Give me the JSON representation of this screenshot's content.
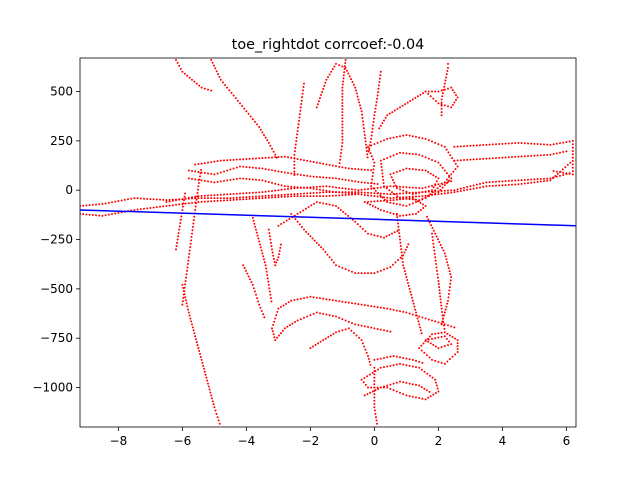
{
  "chart_data": {
    "type": "scatter",
    "title": "toe_rightdot corrcoef:-0.04",
    "xlabel": "",
    "ylabel": "",
    "xlim": [
      -9.2,
      6.3
    ],
    "ylim": [
      -1200,
      670
    ],
    "x_ticks": [
      -8,
      -6,
      -4,
      -2,
      0,
      2,
      4,
      6
    ],
    "x_tick_labels": [
      "−8",
      "−6",
      "−4",
      "−2",
      "0",
      "2",
      "4",
      "6"
    ],
    "y_ticks": [
      500,
      250,
      0,
      -250,
      -500,
      -750,
      -1000
    ],
    "y_tick_labels": [
      "500",
      "250",
      "0",
      "−250",
      "−500",
      "−750",
      "−1000"
    ],
    "grid": false,
    "colors": {
      "points": "#ff0000",
      "fit_line": "#0000ff"
    },
    "fit_line": {
      "x": [
        -9.2,
        6.3
      ],
      "y": [
        -100,
        -180
      ]
    },
    "scatter_paths": [
      [
        [
          -9.2,
          -80
        ],
        [
          -8.5,
          -70
        ],
        [
          -7.5,
          -40
        ],
        [
          -6.5,
          -50
        ],
        [
          -5.5,
          -40
        ],
        [
          -4.5,
          -40
        ],
        [
          -3.5,
          -30
        ],
        [
          -2.5,
          -20
        ],
        [
          -1.5,
          -10
        ],
        [
          -0.5,
          -10
        ],
        [
          0.5,
          -20
        ],
        [
          1.5,
          -10
        ],
        [
          2.5,
          0
        ],
        [
          3.5,
          40
        ],
        [
          4.5,
          50
        ],
        [
          5.5,
          60
        ],
        [
          6.2,
          90
        ]
      ],
      [
        [
          -9.2,
          -120
        ],
        [
          -8.5,
          -130
        ],
        [
          -7.5,
          -100
        ],
        [
          -6.5,
          -80
        ],
        [
          -5.5,
          -60
        ],
        [
          -4.5,
          -50
        ],
        [
          -3.5,
          -40
        ],
        [
          -2.5,
          -30
        ],
        [
          -1.5,
          -30
        ],
        [
          -0.5,
          -20
        ],
        [
          0.5,
          -40
        ],
        [
          1.5,
          -30
        ],
        [
          2.5,
          -10
        ],
        [
          3.5,
          20
        ],
        [
          4.5,
          30
        ],
        [
          5.5,
          50
        ],
        [
          6.2,
          150
        ]
      ],
      [
        [
          -6.5,
          -60
        ],
        [
          -5.5,
          -30
        ],
        [
          -4.5,
          -20
        ],
        [
          -3.5,
          -10
        ],
        [
          -2.5,
          10
        ],
        [
          -1.5,
          20
        ],
        [
          -0.5,
          0
        ],
        [
          0.5,
          20
        ],
        [
          1.5,
          10
        ],
        [
          2.5,
          50
        ]
      ],
      [
        [
          -5.8,
          100
        ],
        [
          -5,
          80
        ],
        [
          -4.2,
          120
        ],
        [
          -3.5,
          110
        ],
        [
          -2.8,
          90
        ],
        [
          -2,
          70
        ],
        [
          -1.2,
          60
        ],
        [
          -0.4,
          40
        ],
        [
          0.2,
          30
        ]
      ],
      [
        [
          -5.8,
          60
        ],
        [
          -5,
          40
        ],
        [
          -4.2,
          60
        ],
        [
          -3.5,
          50
        ],
        [
          -2.8,
          20
        ],
        [
          -2,
          10
        ],
        [
          -1.2,
          -10
        ],
        [
          -0.4,
          -20
        ]
      ],
      [
        [
          -5.6,
          130
        ],
        [
          -4.8,
          150
        ],
        [
          -3.8,
          160
        ],
        [
          -2.8,
          170
        ],
        [
          -1.8,
          140
        ],
        [
          -0.8,
          110
        ],
        [
          0,
          100
        ]
      ],
      [
        [
          2.5,
          220
        ],
        [
          3.5,
          230
        ],
        [
          4.5,
          240
        ],
        [
          5.5,
          230
        ],
        [
          6.2,
          250
        ],
        [
          6.2,
          80
        ],
        [
          5.5,
          100
        ]
      ],
      [
        [
          2.5,
          150
        ],
        [
          3.5,
          160
        ],
        [
          4.5,
          170
        ],
        [
          5.5,
          180
        ],
        [
          6.1,
          200
        ]
      ],
      [
        [
          -0.2,
          220
        ],
        [
          0.4,
          260
        ],
        [
          1,
          280
        ],
        [
          1.6,
          260
        ],
        [
          2.2,
          220
        ],
        [
          2.6,
          120
        ],
        [
          2.2,
          40
        ],
        [
          1.6,
          -40
        ],
        [
          1,
          -80
        ],
        [
          0.4,
          -60
        ],
        [
          -0.1,
          20
        ],
        [
          0,
          140
        ],
        [
          -0.2,
          220
        ]
      ],
      [
        [
          0.2,
          150
        ],
        [
          0.8,
          190
        ],
        [
          1.4,
          180
        ],
        [
          2,
          140
        ],
        [
          2.4,
          60
        ],
        [
          2,
          -10
        ],
        [
          1.4,
          -50
        ],
        [
          0.8,
          -40
        ],
        [
          0.3,
          20
        ],
        [
          0.2,
          150
        ]
      ],
      [
        [
          0.5,
          80
        ],
        [
          1,
          110
        ],
        [
          1.6,
          100
        ],
        [
          2,
          60
        ],
        [
          1.8,
          0
        ],
        [
          1.2,
          -20
        ],
        [
          0.7,
          10
        ],
        [
          0.5,
          80
        ]
      ],
      [
        [
          -0.3,
          -60
        ],
        [
          0.2,
          -100
        ],
        [
          0.8,
          -130
        ],
        [
          1.3,
          -120
        ],
        [
          1.6,
          -80
        ],
        [
          1.2,
          -40
        ],
        [
          0.6,
          -50
        ],
        [
          -0.3,
          -60
        ]
      ],
      [
        [
          -3,
          -180
        ],
        [
          -2.4,
          -120
        ],
        [
          -1.8,
          -60
        ],
        [
          -1.2,
          -80
        ],
        [
          -0.6,
          -160
        ],
        [
          -0.2,
          -220
        ],
        [
          0.3,
          -240
        ],
        [
          0.8,
          -200
        ]
      ],
      [
        [
          -2.6,
          -120
        ],
        [
          -2.2,
          -200
        ],
        [
          -1.6,
          -300
        ],
        [
          -1.2,
          -380
        ],
        [
          -0.6,
          -420
        ],
        [
          0,
          -420
        ],
        [
          0.5,
          -390
        ],
        [
          0.9,
          -330
        ],
        [
          1.1,
          -260
        ]
      ],
      [
        [
          -3.3,
          -200
        ],
        [
          -3.2,
          -300
        ],
        [
          -3.1,
          -380
        ],
        [
          -3,
          -340
        ],
        [
          -2.9,
          -260
        ]
      ],
      [
        [
          -6,
          -580
        ],
        [
          -5.9,
          -460
        ],
        [
          -5.8,
          -340
        ],
        [
          -5.7,
          -220
        ],
        [
          -5.6,
          -100
        ],
        [
          -5.5,
          20
        ],
        [
          -5.4,
          120
        ]
      ],
      [
        [
          -6,
          -480
        ],
        [
          -5.8,
          -620
        ],
        [
          -5.6,
          -740
        ],
        [
          -5.4,
          -860
        ],
        [
          -5.2,
          -980
        ],
        [
          -5,
          -1100
        ],
        [
          -4.8,
          -1200
        ]
      ],
      [
        [
          -3.2,
          -700
        ],
        [
          -3,
          -600
        ],
        [
          -2.6,
          -560
        ],
        [
          -2,
          -540
        ],
        [
          -1.2,
          -560
        ],
        [
          -0.4,
          -580
        ],
        [
          0.4,
          -600
        ],
        [
          1,
          -620
        ],
        [
          1.6,
          -650
        ],
        [
          2.2,
          -680
        ],
        [
          2.6,
          -700
        ]
      ],
      [
        [
          -3.2,
          -700
        ],
        [
          -3.1,
          -760
        ],
        [
          -2.8,
          -700
        ],
        [
          -2.4,
          -660
        ],
        [
          -1.8,
          -620
        ],
        [
          -1.2,
          -640
        ],
        [
          -0.6,
          -680
        ],
        [
          0,
          -700
        ],
        [
          0.6,
          -720
        ]
      ],
      [
        [
          -2,
          -800
        ],
        [
          -1.6,
          -760
        ],
        [
          -1.2,
          -720
        ],
        [
          -0.8,
          -700
        ],
        [
          -0.4,
          -760
        ],
        [
          -0.2,
          -840
        ],
        [
          -0.1,
          -900
        ]
      ],
      [
        [
          1.4,
          -800
        ],
        [
          1.8,
          -730
        ],
        [
          2.2,
          -720
        ],
        [
          2.6,
          -760
        ],
        [
          2.6,
          -820
        ],
        [
          2.2,
          -880
        ],
        [
          1.8,
          -860
        ],
        [
          1.4,
          -800
        ]
      ],
      [
        [
          1.6,
          -760
        ],
        [
          2,
          -800
        ],
        [
          2.4,
          -780
        ],
        [
          2.2,
          -740
        ],
        [
          1.6,
          -760
        ]
      ],
      [
        [
          -0.4,
          -960
        ],
        [
          0.2,
          -900
        ],
        [
          0.8,
          -880
        ],
        [
          1.4,
          -900
        ],
        [
          1.9,
          -960
        ],
        [
          2,
          -1020
        ],
        [
          1.6,
          -1060
        ],
        [
          1,
          -1040
        ],
        [
          0.4,
          -1000
        ],
        [
          -0.2,
          -1000
        ],
        [
          -0.4,
          -960
        ]
      ],
      [
        [
          -0.3,
          -1040
        ],
        [
          0.2,
          -1000
        ],
        [
          0.8,
          -970
        ],
        [
          1.4,
          -990
        ],
        [
          1.8,
          -1030
        ]
      ],
      [
        [
          0,
          -900
        ],
        [
          0,
          -1000
        ],
        [
          0,
          -1100
        ],
        [
          0.1,
          -1200
        ]
      ],
      [
        [
          0,
          -860
        ],
        [
          0.6,
          -840
        ],
        [
          1.2,
          -860
        ],
        [
          1.6,
          -880
        ]
      ],
      [
        [
          2.1,
          -680
        ],
        [
          2.3,
          -560
        ],
        [
          2.4,
          -440
        ],
        [
          2.2,
          -320
        ],
        [
          1.9,
          -220
        ],
        [
          1.6,
          -120
        ]
      ],
      [
        [
          1.8,
          -220
        ],
        [
          1.9,
          -340
        ],
        [
          2,
          -460
        ],
        [
          2.1,
          -600
        ],
        [
          2.2,
          -720
        ]
      ],
      [
        [
          0.7,
          -120
        ],
        [
          0.8,
          -250
        ],
        [
          0.9,
          -380
        ],
        [
          1.1,
          -500
        ],
        [
          1.3,
          -620
        ],
        [
          1.5,
          -740
        ]
      ],
      [
        [
          -2.2,
          540
        ],
        [
          -2.3,
          420
        ],
        [
          -2.4,
          300
        ],
        [
          -2.5,
          180
        ],
        [
          -2.5,
          60
        ]
      ],
      [
        [
          -1.8,
          420
        ],
        [
          -1.5,
          560
        ],
        [
          -1.2,
          640
        ],
        [
          -0.9,
          620
        ],
        [
          -0.6,
          520
        ],
        [
          -0.4,
          400
        ],
        [
          -0.3,
          280
        ],
        [
          -0.2,
          150
        ]
      ],
      [
        [
          -5.1,
          660
        ],
        [
          -4.8,
          560
        ],
        [
          -4.4,
          480
        ],
        [
          -4,
          400
        ],
        [
          -3.6,
          320
        ],
        [
          -3.3,
          240
        ],
        [
          -3,
          150
        ]
      ],
      [
        [
          -6.2,
          660
        ],
        [
          -6,
          600
        ],
        [
          -5.7,
          560
        ],
        [
          -5.4,
          520
        ],
        [
          -5,
          500
        ]
      ],
      [
        [
          -0.9,
          660
        ],
        [
          -1,
          520
        ],
        [
          -1,
          380
        ],
        [
          -1,
          240
        ],
        [
          -1.1,
          120
        ]
      ],
      [
        [
          0.2,
          600
        ],
        [
          0.1,
          480
        ],
        [
          0,
          380
        ],
        [
          -0.1,
          260
        ],
        [
          -0.2,
          180
        ]
      ],
      [
        [
          1.6,
          500
        ],
        [
          2,
          440
        ],
        [
          2.4,
          420
        ],
        [
          2.6,
          470
        ],
        [
          2.4,
          520
        ],
        [
          2,
          500
        ],
        [
          1.6,
          500
        ]
      ],
      [
        [
          2.1,
          380
        ],
        [
          2.1,
          460
        ],
        [
          2.2,
          540
        ],
        [
          2.3,
          620
        ],
        [
          2.3,
          660
        ]
      ],
      [
        [
          1.6,
          500
        ],
        [
          1.2,
          460
        ],
        [
          0.8,
          420
        ],
        [
          0.4,
          380
        ],
        [
          0.1,
          300
        ]
      ],
      [
        [
          -3.8,
          -140
        ],
        [
          -3.6,
          -260
        ],
        [
          -3.4,
          -380
        ],
        [
          -3.3,
          -480
        ],
        [
          -3.2,
          -580
        ]
      ],
      [
        [
          -6.2,
          -300
        ],
        [
          -6.1,
          -200
        ],
        [
          -6,
          -100
        ],
        [
          -5.9,
          0
        ]
      ],
      [
        [
          -4.1,
          -380
        ],
        [
          -3.8,
          -480
        ],
        [
          -3.6,
          -580
        ],
        [
          -3.4,
          -660
        ]
      ]
    ]
  }
}
